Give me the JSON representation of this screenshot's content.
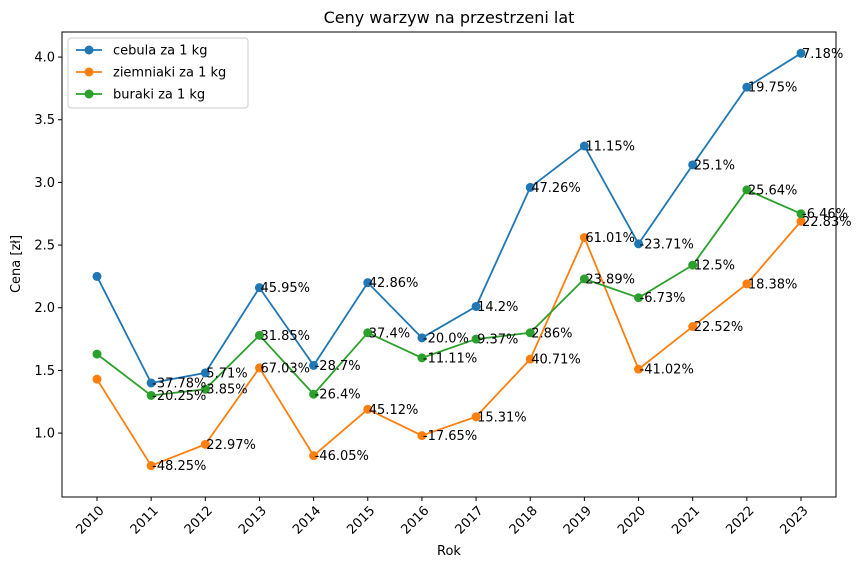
{
  "chart_data": {
    "type": "line",
    "title": "Ceny warzyw na przestrzeni lat",
    "xlabel": "Rok",
    "ylabel": "Cena [zł]",
    "x": [
      "2010",
      "2011",
      "2012",
      "2013",
      "2014",
      "2015",
      "2016",
      "2017",
      "2018",
      "2019",
      "2020",
      "2021",
      "2022",
      "2023"
    ],
    "ylim": [
      0.49,
      4.2
    ],
    "yticks": [
      "1.0",
      "1.5",
      "2.0",
      "2.5",
      "3.0",
      "3.5",
      "4.0"
    ],
    "legend_position": "top-left",
    "grid": false,
    "series": [
      {
        "name": "cebula za 1 kg",
        "color": "#1f77b4",
        "values": [
          2.25,
          1.4,
          1.48,
          2.16,
          1.54,
          2.2,
          1.76,
          2.01,
          2.96,
          3.29,
          2.51,
          3.14,
          3.76,
          4.03
        ],
        "labels": [
          "",
          "-37.78%",
          "5.71%",
          "45.95%",
          "-28.7%",
          "42.86%",
          "-20.0%",
          "14.2%",
          "47.26%",
          "11.15%",
          "-23.71%",
          "25.1%",
          "19.75%",
          "7.18%"
        ]
      },
      {
        "name": "ziemniaki za 1 kg",
        "color": "#ff7f0e",
        "values": [
          1.43,
          0.74,
          0.91,
          1.52,
          0.82,
          1.19,
          0.98,
          1.13,
          1.59,
          2.56,
          1.51,
          1.85,
          2.19,
          2.69
        ],
        "labels": [
          "",
          "-48.25%",
          "22.97%",
          "67.03%",
          "-46.05%",
          "45.12%",
          "-17.65%",
          "15.31%",
          "40.71%",
          "61.01%",
          "-41.02%",
          "22.52%",
          "18.38%",
          "22.83%"
        ]
      },
      {
        "name": "buraki za 1 kg",
        "color": "#2ca02c",
        "values": [
          1.63,
          1.3,
          1.35,
          1.78,
          1.31,
          1.8,
          1.6,
          1.75,
          1.8,
          2.23,
          2.08,
          2.34,
          2.94,
          2.75
        ],
        "labels": [
          "",
          "-20.25%",
          "3.85%",
          "31.85%",
          "-26.4%",
          "37.4%",
          "-11.11%",
          "9.37%",
          "2.86%",
          "23.89%",
          "-6.73%",
          "12.5%",
          "25.64%",
          "-6.46%"
        ]
      }
    ]
  }
}
